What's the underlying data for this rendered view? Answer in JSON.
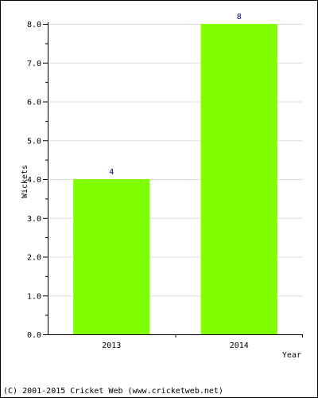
{
  "chart_data": {
    "type": "bar",
    "categories": [
      "2013",
      "2014"
    ],
    "values": [
      4,
      8
    ],
    "data_labels": [
      "4",
      "8"
    ],
    "title": "",
    "xlabel": "Year",
    "ylabel": "Wickets",
    "ylim": [
      0,
      8
    ],
    "y_major_ticks": [
      0,
      1,
      2,
      3,
      4,
      5,
      6,
      7,
      8
    ],
    "y_tick_labels": [
      "0.0",
      "1.0",
      "2.0",
      "3.0",
      "4.0",
      "5.0",
      "6.0",
      "7.0",
      "8.0"
    ],
    "grid": true,
    "legend": "none",
    "colors": {
      "bar": "#80ff00",
      "data_label": "#000080",
      "grid": "#dddddd",
      "axis": "#000000"
    }
  },
  "footer": {
    "copyright": "(C) 2001-2015 Cricket Web (www.cricketweb.net)"
  }
}
